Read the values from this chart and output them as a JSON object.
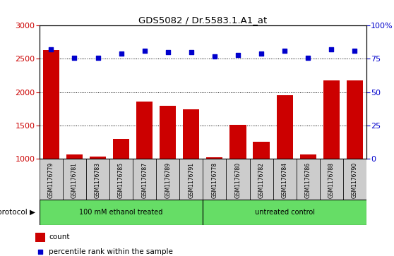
{
  "title": "GDS5082 / Dr.5583.1.A1_at",
  "samples": [
    "GSM1176779",
    "GSM1176781",
    "GSM1176783",
    "GSM1176785",
    "GSM1176787",
    "GSM1176789",
    "GSM1176791",
    "GSM1176778",
    "GSM1176780",
    "GSM1176782",
    "GSM1176784",
    "GSM1176786",
    "GSM1176788",
    "GSM1176790"
  ],
  "counts": [
    2630,
    1060,
    1030,
    1300,
    1860,
    1790,
    1740,
    1020,
    1510,
    1250,
    1950,
    1060,
    2180,
    2180
  ],
  "percentiles": [
    82,
    76,
    76,
    79,
    81,
    80,
    80,
    77,
    78,
    79,
    81,
    76,
    82,
    81
  ],
  "group1_label": "100 mM ethanol treated",
  "group2_label": "untreated control",
  "group_color": "#66DD66",
  "bar_color": "#CC0000",
  "dot_color": "#0000CC",
  "ylim_left": [
    1000,
    3000
  ],
  "ylim_right": [
    0,
    100
  ],
  "yticks_left": [
    1000,
    1500,
    2000,
    2500,
    3000
  ],
  "yticks_right": [
    0,
    25,
    50,
    75,
    100
  ],
  "ytick_labels_right": [
    "0",
    "25",
    "50",
    "75",
    "100%"
  ],
  "grid_values": [
    1500,
    2000,
    2500
  ],
  "protocol_label": "protocol",
  "legend_count_label": "count",
  "legend_pct_label": "percentile rank within the sample",
  "sample_bg_color": "#CCCCCC",
  "plot_bg_color": "#FFFFFF",
  "group1_count": 7,
  "group2_count": 7
}
